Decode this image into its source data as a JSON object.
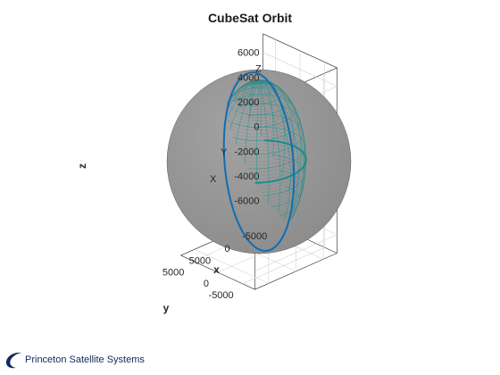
{
  "chart_data": {
    "type": "3d-orbit",
    "title": "CubeSat Orbit",
    "xlabel": "x",
    "ylabel": "y",
    "zlabel": "z",
    "z_ticks": [
      6000,
      4000,
      2000,
      0,
      -2000,
      -4000,
      -6000
    ],
    "y_ticks": [
      -5000,
      0,
      5000
    ],
    "x_ticks": [
      -5000,
      0,
      5000
    ],
    "axis_markers": [
      "X",
      "Y",
      "Z"
    ],
    "earth_radius": 6378,
    "orbit_radius": 7100,
    "orbit_inclination_deg": 90,
    "equator_color": "#1a8c8c",
    "orbit_color": "#0f6db3",
    "sphere_color": "#8c8c8c"
  },
  "brand": {
    "text": "Princeton Satellite Systems",
    "color": "#0d2a5e"
  }
}
